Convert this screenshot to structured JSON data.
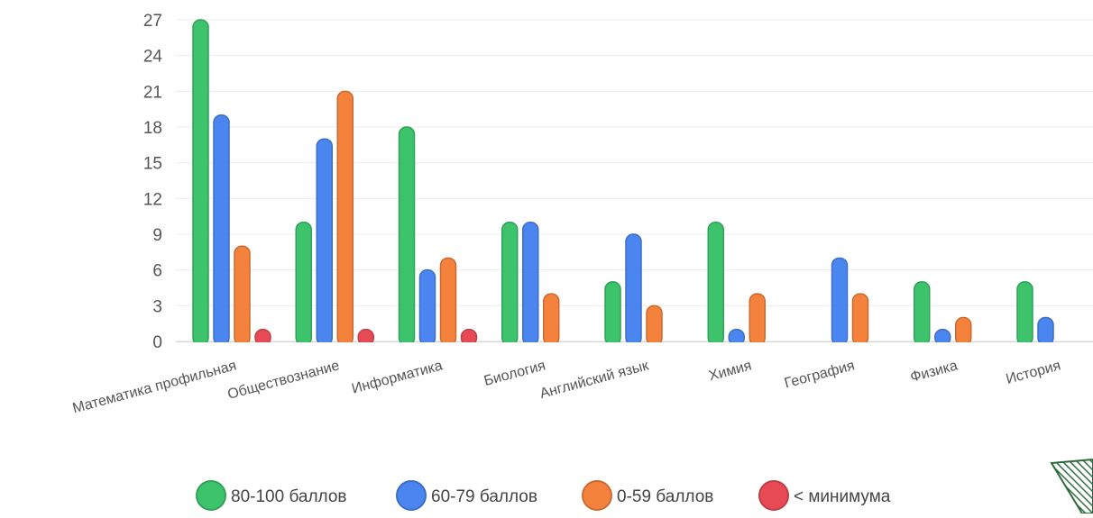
{
  "chart_data": {
    "type": "bar",
    "categories": [
      "Математика профильная",
      "Обществознание",
      "Информатика",
      "Биология",
      "Английский язык",
      "Химия",
      "География",
      "Физика",
      "История"
    ],
    "series": [
      {
        "name": "80-100 баллов",
        "color": "#3cc36c",
        "values": [
          27,
          10,
          18,
          10,
          5,
          10,
          0,
          5,
          5
        ]
      },
      {
        "name": "60-79 баллов",
        "color": "#4b86f0",
        "values": [
          19,
          17,
          6,
          10,
          9,
          1,
          7,
          1,
          2
        ]
      },
      {
        "name": "0-59 баллов",
        "color": "#f5823c",
        "values": [
          8,
          21,
          7,
          4,
          3,
          4,
          4,
          2,
          0
        ]
      },
      {
        "name": "< минимума",
        "color": "#e84a55",
        "values": [
          1,
          1,
          1,
          0,
          0,
          0,
          0,
          0,
          0
        ]
      }
    ],
    "yticks": [
      "0",
      "3",
      "6",
      "9",
      "12",
      "15",
      "18",
      "21",
      "24",
      "27"
    ],
    "ylim": [
      0,
      27
    ],
    "grid": true,
    "legend_position": "bottom",
    "title": "",
    "xlabel": "",
    "ylabel": ""
  }
}
